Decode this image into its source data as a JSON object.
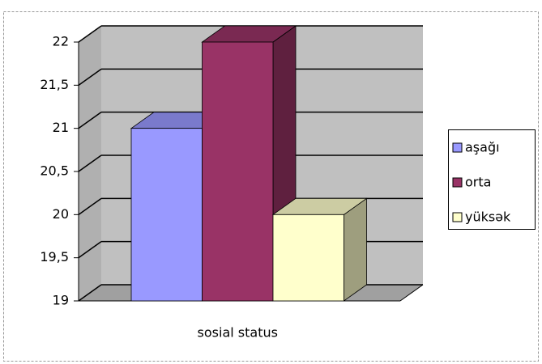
{
  "chart_data": {
    "type": "bar3d",
    "categories": [
      "sosial status"
    ],
    "series": [
      {
        "name": "aşağı",
        "color": "#9999ff",
        "values": [
          21
        ]
      },
      {
        "name": "orta",
        "color": "#993366",
        "values": [
          22
        ]
      },
      {
        "name": "yüksək",
        "color": "#ffffcc",
        "values": [
          20
        ]
      }
    ],
    "ylim": [
      19,
      22
    ],
    "yticks": [
      19,
      {
        "value": 19.5,
        "label": "19,5"
      },
      20,
      {
        "value": 20.5,
        "label": "20,5"
      },
      21,
      {
        "value": 21.5,
        "label": "21,5"
      },
      22
    ],
    "grid": true,
    "legend": "right"
  }
}
